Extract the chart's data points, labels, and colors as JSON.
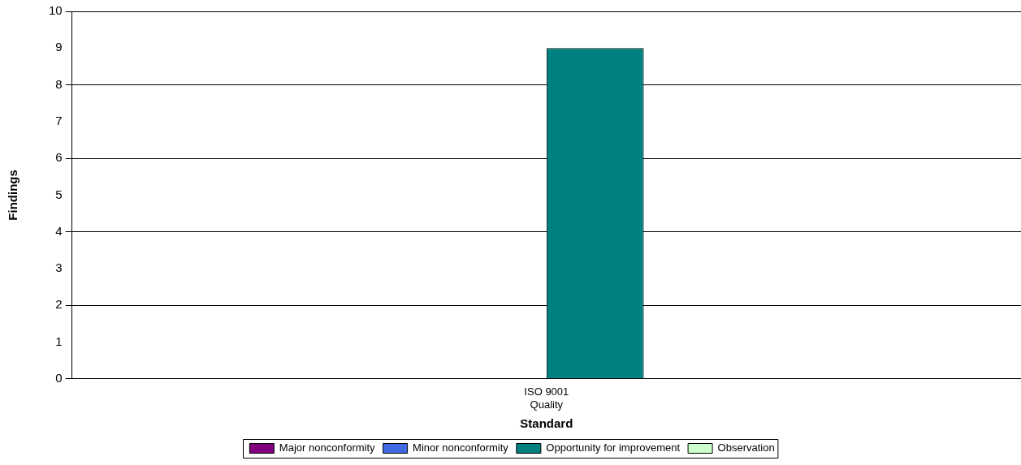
{
  "chart_data": {
    "type": "bar",
    "xlabel": "Standard",
    "ylabel": "Findings",
    "categories": [
      "ISO 9001\nQuality"
    ],
    "series": [
      {
        "name": "Major nonconformity",
        "color": "#800080",
        "values": [
          0
        ]
      },
      {
        "name": "Minor nonconformity",
        "color": "#4169e1",
        "values": [
          0
        ]
      },
      {
        "name": "Opportunity for improvement",
        "color": "#008080",
        "values": [
          9
        ]
      },
      {
        "name": "Observation",
        "color": "#ccffcc",
        "values": [
          0
        ]
      }
    ],
    "ylim": [
      0,
      10
    ],
    "yticks": [
      0,
      1,
      2,
      3,
      4,
      5,
      6,
      7,
      8,
      9,
      10
    ],
    "grid": "y",
    "legend": "bottom"
  }
}
